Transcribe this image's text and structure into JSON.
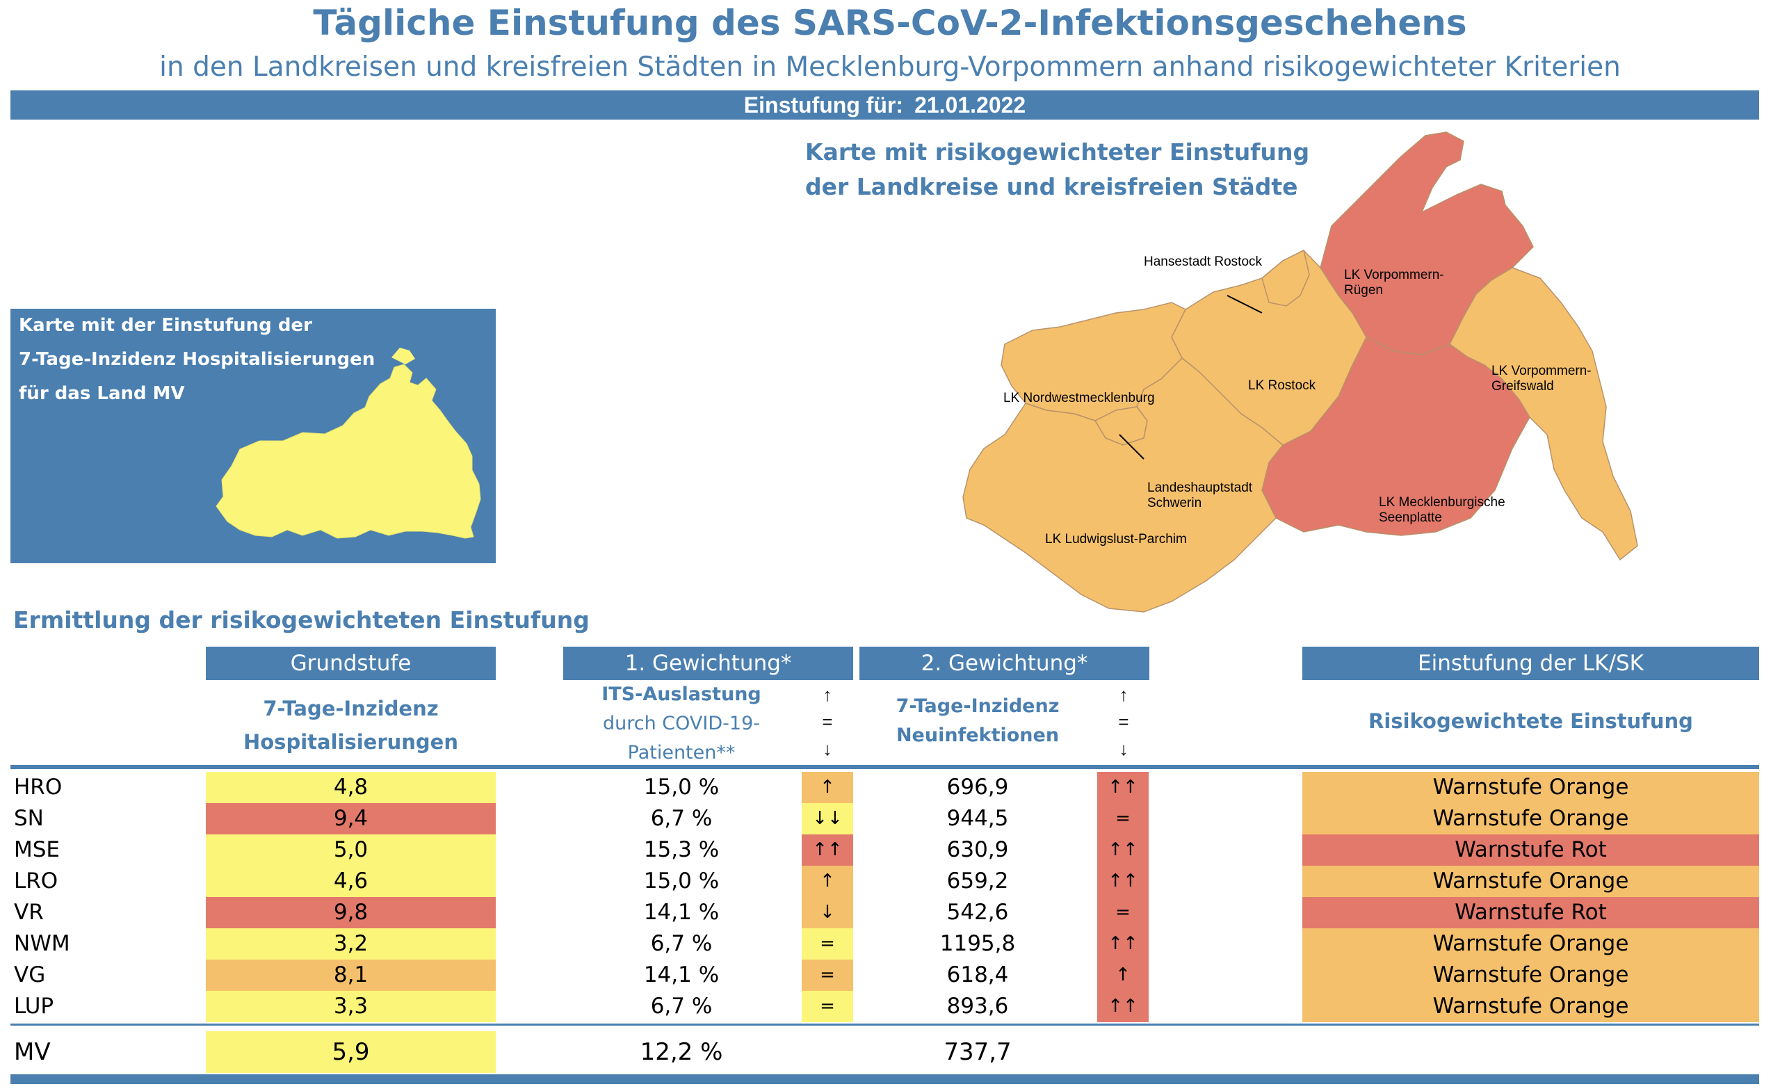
{
  "header": {
    "title": "Tägliche Einstufung des SARS-CoV-2-Infektionsgeschehens",
    "subtitle": "in den Landkreisen und kreisfreien Städten in Mecklenburg-Vorpommern anhand risikogewichteter Kriterien",
    "date_label": "Einstufung für:",
    "date_value": "21.01.2022"
  },
  "map": {
    "title_line1": "Karte mit risikogewichteter Einstufung",
    "title_line2": "der Landkreise und kreisfreien Städte",
    "labels": {
      "hro": "Hansestadt Rostock",
      "vr_1": "LK Vorpommern-",
      "vr_2": "Rügen",
      "nwm": "LK Nordwestmecklenburg",
      "lro": "LK Rostock",
      "vg_1": "LK Vorpommern-",
      "vg_2": "Greifswald",
      "sn_1": "Landeshauptstadt",
      "sn_2": "Schwerin",
      "mse_1": "LK Mecklenburgische",
      "mse_2": "Seenplatte",
      "lup": "LK Ludwigslust-Parchim"
    }
  },
  "hosp_box": {
    "line1": "Karte mit der Einstufung der",
    "line2": "7-Tage-Inzidenz Hospitalisierungen",
    "line3": "für das Land MV"
  },
  "table": {
    "section_title": "Ermittlung der risikogewichteten Einstufung",
    "headers": {
      "grundstufe": "Grundstufe",
      "gew1": "1. Gewichtung*",
      "gew2": "2. Gewichtung*",
      "einstufung": "Einstufung der LK/SK"
    },
    "subheaders": {
      "gs_1": "7-Tage-Inzidenz",
      "gs_2": "Hospitalisierungen",
      "its_1": "ITS-Auslastung",
      "its_2": "durch COVID-19-",
      "its_3": "Patienten**",
      "inz_1": "7-Tage-Inzidenz",
      "inz_2": "Neuinfektionen",
      "ein": "Risikogewichtete Einstufung",
      "arrow_up": "↑",
      "arrow_eq": "=",
      "arrow_down": "↓"
    },
    "rows": [
      {
        "lk": "HRO",
        "hosp": "4,8",
        "its": "15,0 %",
        "its_trend": "↑",
        "inz": "696,9",
        "inz_trend": "↑↑",
        "einstufung": "Warnstufe Orange"
      },
      {
        "lk": "SN",
        "hosp": "9,4",
        "its": "6,7 %",
        "its_trend": "↓↓",
        "inz": "944,5",
        "inz_trend": "=",
        "einstufung": "Warnstufe Orange"
      },
      {
        "lk": "MSE",
        "hosp": "5,0",
        "its": "15,3 %",
        "its_trend": "↑↑",
        "inz": "630,9",
        "inz_trend": "↑↑",
        "einstufung": "Warnstufe Rot"
      },
      {
        "lk": "LRO",
        "hosp": "4,6",
        "its": "15,0 %",
        "its_trend": "↑",
        "inz": "659,2",
        "inz_trend": "↑↑",
        "einstufung": "Warnstufe Orange"
      },
      {
        "lk": "VR",
        "hosp": "9,8",
        "its": "14,1 %",
        "its_trend": "↓",
        "inz": "542,6",
        "inz_trend": "=",
        "einstufung": "Warnstufe Rot"
      },
      {
        "lk": "NWM",
        "hosp": "3,2",
        "its": "6,7 %",
        "its_trend": "=",
        "inz": "1195,8",
        "inz_trend": "↑↑",
        "einstufung": "Warnstufe Orange"
      },
      {
        "lk": "VG",
        "hosp": "8,1",
        "its": "14,1 %",
        "its_trend": "=",
        "inz": "618,4",
        "inz_trend": "↑",
        "einstufung": "Warnstufe Orange"
      },
      {
        "lk": "LUP",
        "hosp": "3,3",
        "its": "6,7 %",
        "its_trend": "=",
        "inz": "893,6",
        "inz_trend": "↑↑",
        "einstufung": "Warnstufe Orange"
      }
    ],
    "total": {
      "lk": "MV",
      "hosp": "5,9",
      "its": "12,2 %",
      "inz": "737,7"
    }
  },
  "colors": {
    "blue": "#4a7fb0",
    "yellow": "#fbf67a",
    "orange": "#f5c06b",
    "red": "#e2796b"
  }
}
